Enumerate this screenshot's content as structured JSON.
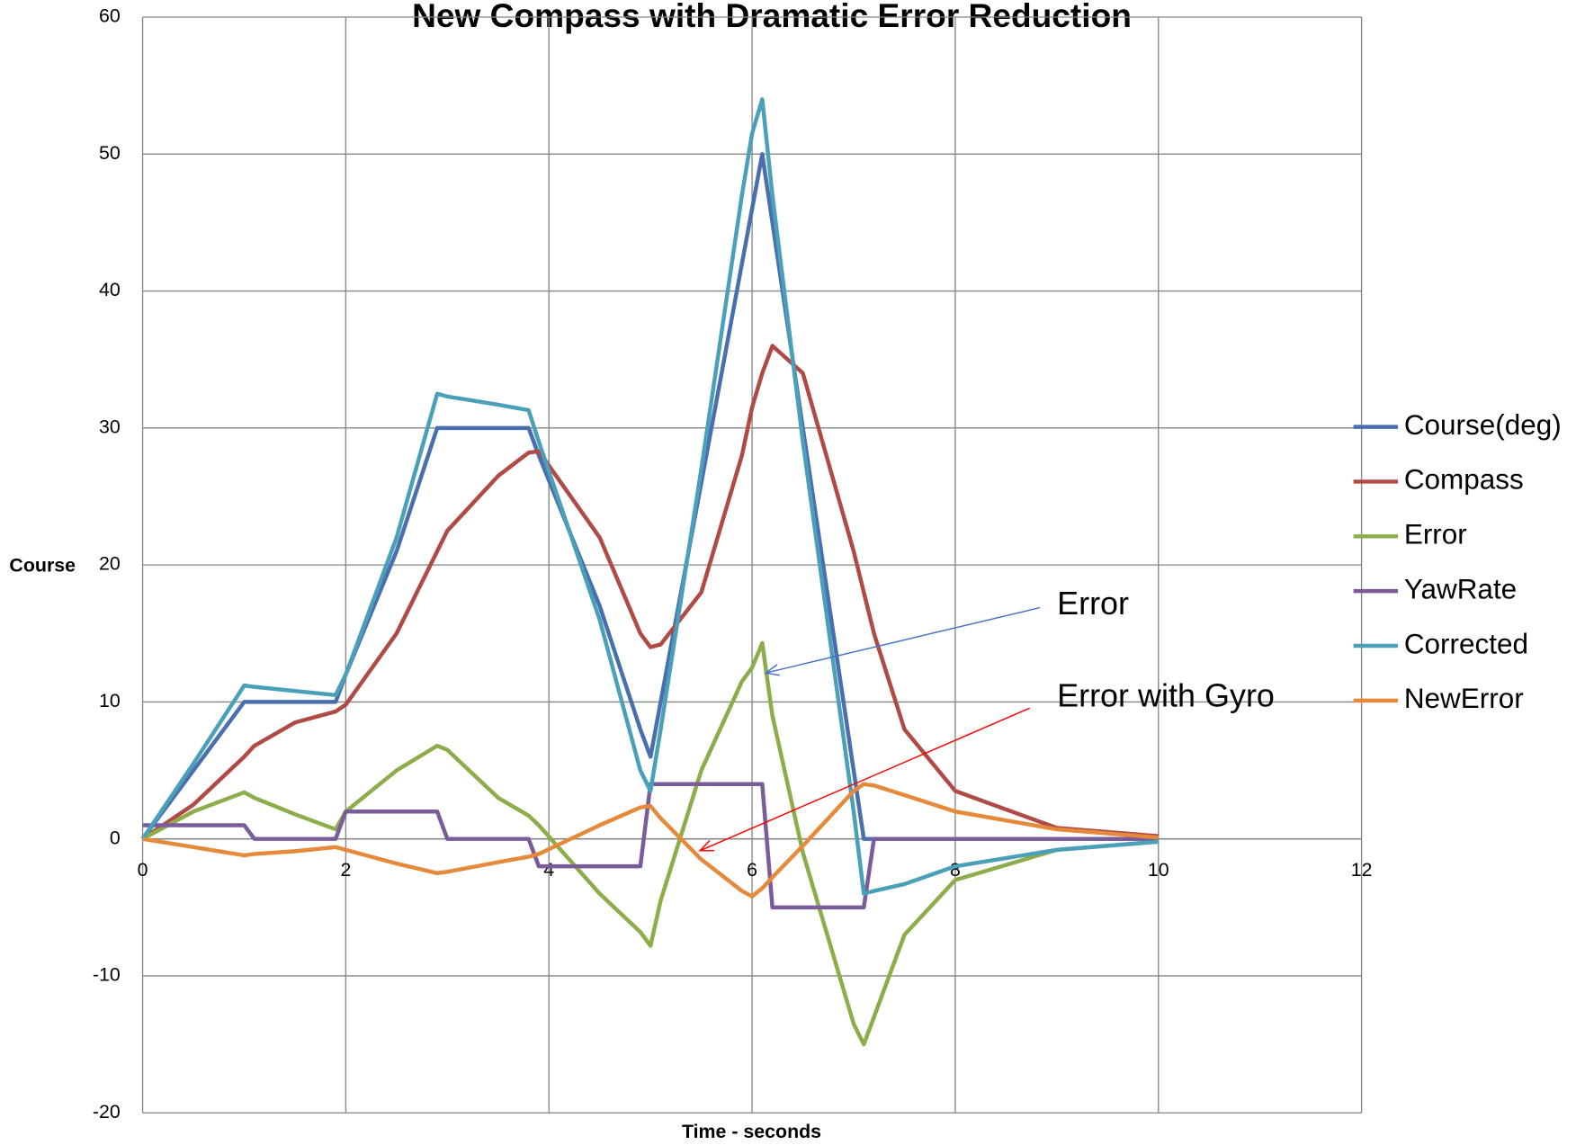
{
  "chart_data": {
    "type": "line",
    "title": "New Compass with Dramatic Error Reduction",
    "xlabel": "Time - seconds",
    "ylabel": "Course",
    "x": [
      0,
      0.5,
      1,
      1.1,
      1.5,
      1.9,
      2,
      2.5,
      2.9,
      3,
      3.5,
      3.8,
      3.9,
      4.5,
      4.9,
      5,
      5.1,
      5.5,
      5.9,
      6,
      6.1,
      6.2,
      6.5,
      7,
      7.1,
      7.2,
      7.5,
      8,
      9,
      10
    ],
    "series": [
      {
        "name": "Course(deg)",
        "color": "#4a6fae",
        "values": [
          0,
          5,
          10,
          10,
          10,
          10,
          12,
          21,
          30,
          30,
          30,
          30,
          28,
          17,
          8,
          6,
          10,
          26,
          42,
          46,
          50,
          45,
          30,
          5,
          0,
          0,
          0,
          0,
          0,
          0
        ]
      },
      {
        "name": "Compass",
        "color": "#b04a45",
        "values": [
          0,
          2.5,
          6,
          6.8,
          8.5,
          9.3,
          9.8,
          15,
          21,
          22.5,
          26.5,
          28.2,
          28.3,
          22,
          15,
          14,
          14.2,
          18,
          28,
          31.5,
          34,
          36,
          34,
          21,
          18,
          15,
          8,
          3.5,
          0.8,
          0.2
        ]
      },
      {
        "name": "Error",
        "color": "#8cad4a",
        "values": [
          0,
          2,
          3.4,
          3,
          1.8,
          0.7,
          2,
          5,
          6.8,
          6.5,
          3,
          1.7,
          1,
          -4,
          -6.8,
          -7.8,
          -4.5,
          5,
          11.5,
          12.5,
          14.3,
          9,
          -1,
          -13.5,
          -15,
          -13,
          -7,
          -3,
          -0.8,
          -0.2
        ]
      },
      {
        "name": "YawRate",
        "color": "#7b5c9b",
        "values": [
          1,
          1,
          1,
          0,
          0,
          0,
          2,
          2,
          2,
          0,
          0,
          0,
          -2,
          -2,
          -2,
          4,
          4,
          4,
          4,
          4,
          4,
          -5,
          -5,
          -5,
          -5,
          0,
          0,
          0,
          0,
          0
        ]
      },
      {
        "name": "Corrected",
        "color": "#4aa0b8",
        "values": [
          0,
          5.5,
          11.2,
          11.1,
          10.8,
          10.5,
          12,
          22,
          32.5,
          32.3,
          31.7,
          31.3,
          29,
          16,
          5,
          3.5,
          8,
          27,
          47,
          51.5,
          54,
          47,
          29,
          2,
          -4,
          -3.8,
          -3.3,
          -2,
          -0.8,
          -0.2
        ]
      },
      {
        "name": "NewError",
        "color": "#e58a3a",
        "values": [
          0,
          -0.6,
          -1.2,
          -1.1,
          -0.9,
          -0.6,
          -0.8,
          -1.8,
          -2.5,
          -2.4,
          -1.7,
          -1.3,
          -1.1,
          1,
          2.3,
          2.4,
          1.5,
          -1.5,
          -3.8,
          -4.2,
          -3.6,
          -2.8,
          -0.5,
          3.5,
          4,
          3.9,
          3.2,
          2,
          0.7,
          0.1
        ]
      }
    ],
    "xlim": [
      0,
      12
    ],
    "xticks": [
      0,
      2,
      4,
      6,
      8,
      10,
      12
    ],
    "ylim": [
      -20,
      60
    ],
    "yticks": [
      -20,
      -10,
      0,
      10,
      20,
      30,
      40,
      50,
      60
    ],
    "grid": true,
    "legend": "right",
    "annotations": [
      {
        "text": "Error",
        "color": "#4472c4"
      },
      {
        "text": "Error with Gyro",
        "color": "#ff0000"
      }
    ]
  }
}
